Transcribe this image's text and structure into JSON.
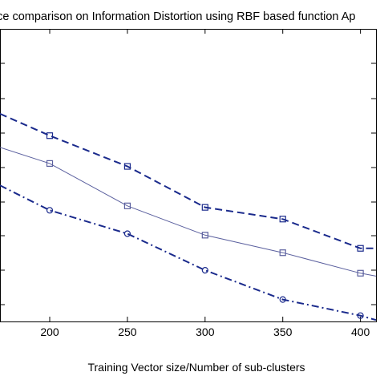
{
  "chart_data": {
    "type": "line",
    "title": "ance comparison on Information Distortion using RBF based function Ap",
    "xlabel": "Training Vector size/Number of sub-clusters",
    "ylabel": "",
    "xlim": [
      168,
      410
    ],
    "ylim": [
      0,
      10
    ],
    "x_ticks": [
      200,
      250,
      300,
      350,
      400
    ],
    "grid": false,
    "series": [
      {
        "style": "dashed",
        "marker": "square",
        "color": "#1a2a8c",
        "x": [
          168,
          200,
          250,
          300,
          350,
          400,
          410
        ],
        "y": [
          7.1,
          6.35,
          5.3,
          3.9,
          3.5,
          2.5,
          2.5
        ]
      },
      {
        "style": "solid",
        "marker": "square",
        "color": "#5a5f9e",
        "x": [
          168,
          200,
          250,
          300,
          350,
          400,
          410
        ],
        "y": [
          5.95,
          5.4,
          3.95,
          2.95,
          2.35,
          1.65,
          1.55
        ]
      },
      {
        "style": "dashdot",
        "marker": "circle",
        "color": "#1a2a8c",
        "x": [
          168,
          200,
          250,
          300,
          350,
          400,
          410
        ],
        "y": [
          4.65,
          3.8,
          3.0,
          1.75,
          0.75,
          0.2,
          0.05
        ]
      }
    ]
  }
}
